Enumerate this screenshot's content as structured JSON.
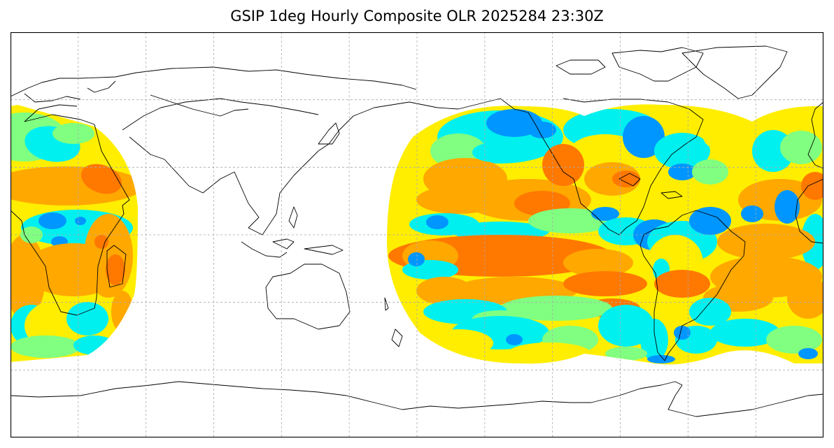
{
  "title": "GSIP 1deg Hourly Composite OLR 2025284 23:30Z",
  "map": {
    "projection": "equirectangular",
    "lon_range": [
      -160,
      200
    ],
    "lat_range": [
      -90,
      90
    ],
    "graticule_lon_step": 30,
    "graticule_lat_step": 30,
    "gridline_style": "dashed",
    "gridline_color": "#aaaaaa",
    "coastline_color": "#000000",
    "data_coverage": [
      {
        "name": "east-atlantic-africa",
        "lon_min": -160,
        "lon_max": -103,
        "lat_min": -56,
        "lat_max": 57
      },
      {
        "name": "pacific-americas-atlantic",
        "lon_min": 10,
        "lon_max": 200,
        "lat_min": -57,
        "lat_max": 57
      }
    ],
    "palette": {
      "very_low": "#0000ff",
      "low": "#0096ff",
      "mid_low": "#00f0f0",
      "mid": "#80ff80",
      "mid_high": "#ffee00",
      "high": "#ffa800",
      "very_high": "#ff7800"
    }
  }
}
